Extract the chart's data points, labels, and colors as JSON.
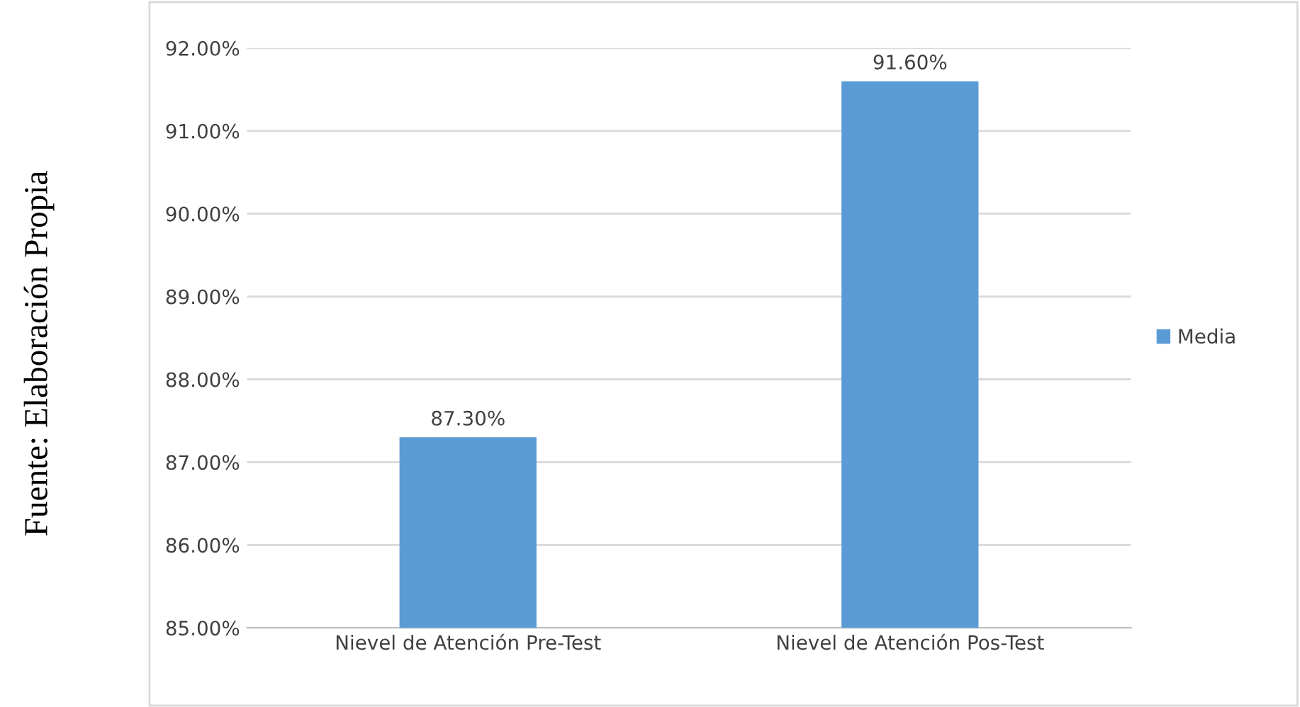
{
  "chart_data": {
    "type": "bar",
    "categories": [
      "Nievel de Atención Pre-Test",
      "Nievel de Atención Pos-Test"
    ],
    "series": [
      {
        "name": "Media",
        "color": "#5b9bd5",
        "values": [
          87.3,
          91.6
        ],
        "value_labels": [
          "87.30%",
          "91.60%"
        ]
      }
    ],
    "ylim": [
      85,
      92
    ],
    "yticks": [
      {
        "value": 85,
        "label": "85.00%"
      },
      {
        "value": 86,
        "label": "86.00%"
      },
      {
        "value": 87,
        "label": "87.00%"
      },
      {
        "value": 88,
        "label": "88.00%"
      },
      {
        "value": 89,
        "label": "89.00%"
      },
      {
        "value": 90,
        "label": "90.00%"
      },
      {
        "value": 91,
        "label": "91.00%"
      },
      {
        "value": 92,
        "label": "92.00%"
      }
    ],
    "grid": "y",
    "legend": "right",
    "annotations": [
      "Fuente: Elaboración Propia"
    ]
  }
}
